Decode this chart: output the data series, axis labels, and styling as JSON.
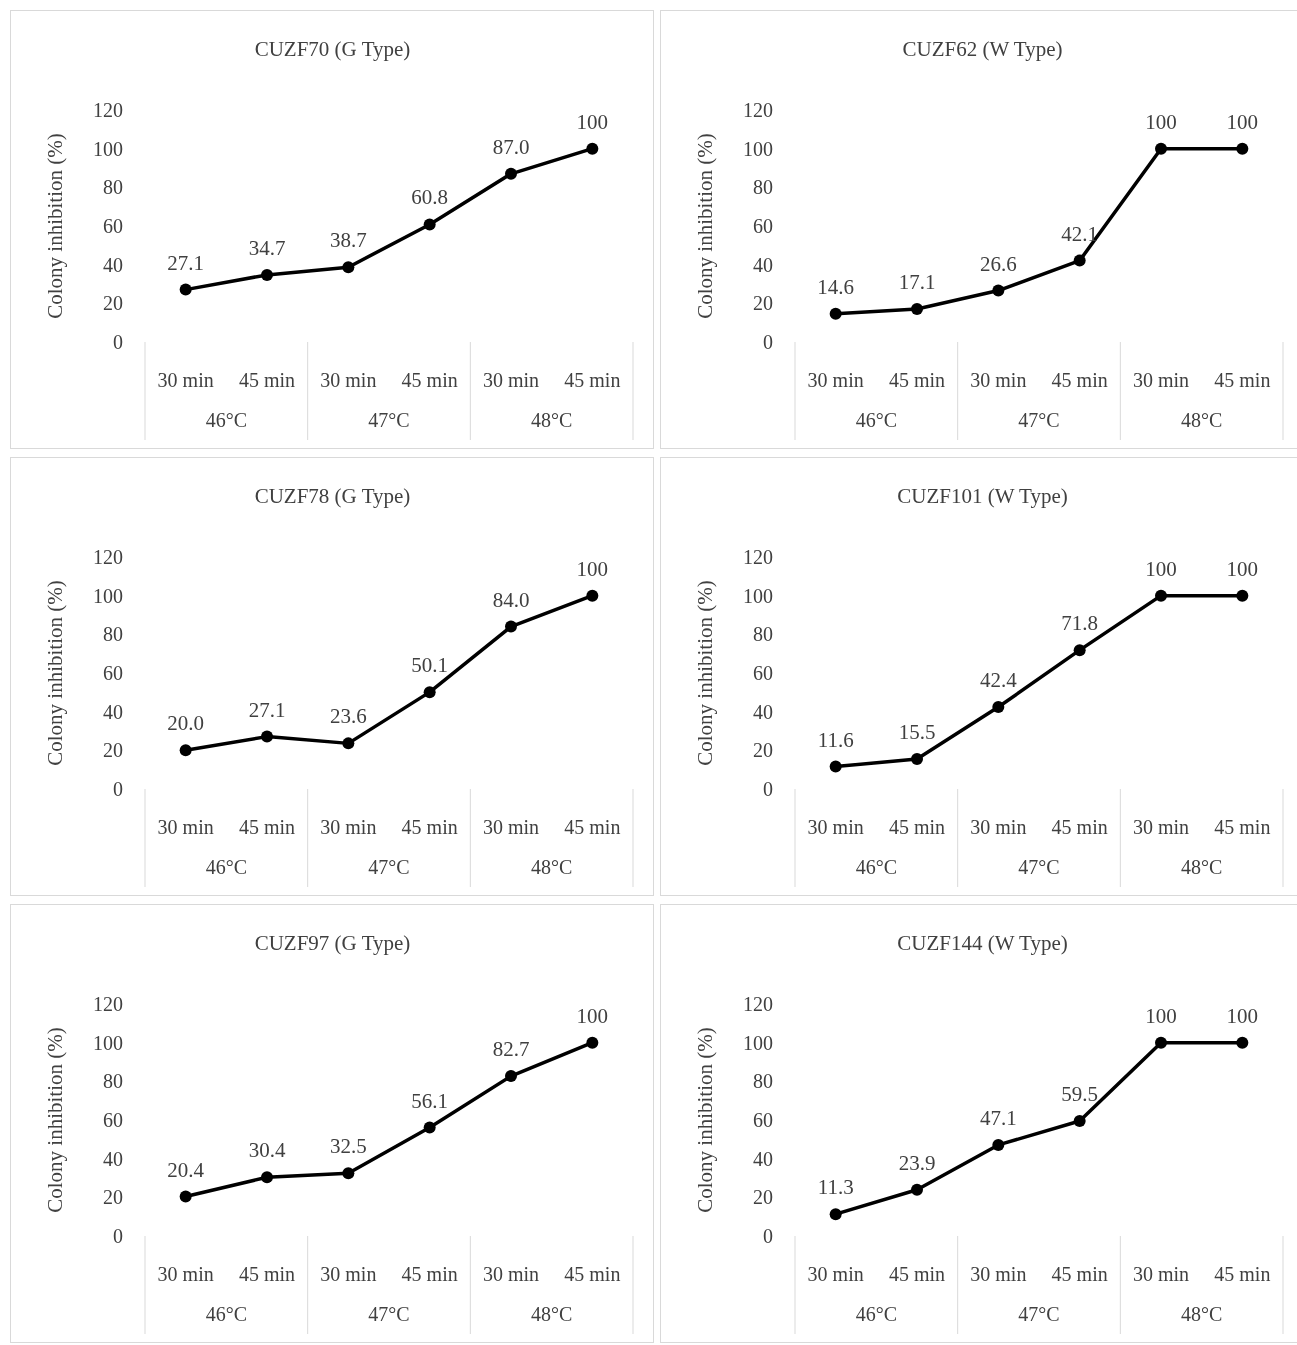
{
  "chart_data": [
    {
      "type": "line",
      "title": "CUZF70 (G Type)",
      "ylabel": "Colony inhibition (%)",
      "categories": [
        "30 min",
        "45 min",
        "30 min",
        "45 min",
        "30 min",
        "45 min"
      ],
      "annotations": [
        "46°C",
        "47°C",
        "48°C"
      ],
      "ylim": [
        0,
        120
      ],
      "yticks": [
        0,
        20,
        40,
        60,
        80,
        100,
        120
      ],
      "marker": "circle",
      "series": [
        {
          "color": "#000000",
          "values": [
            27.1,
            34.7,
            38.7,
            60.8,
            87.0,
            100
          ],
          "value_labels": [
            "27.1",
            "34.7",
            "38.7",
            "60.8",
            "87.0",
            "100"
          ]
        }
      ]
    },
    {
      "type": "line",
      "title": "CUZF62 (W Type)",
      "ylabel": "Colony inhibition (%)",
      "categories": [
        "30 min",
        "45 min",
        "30 min",
        "45 min",
        "30 min",
        "45 min"
      ],
      "annotations": [
        "46°C",
        "47°C",
        "48°C"
      ],
      "ylim": [
        0,
        120
      ],
      "yticks": [
        0,
        20,
        40,
        60,
        80,
        100,
        120
      ],
      "marker": "circle",
      "series": [
        {
          "color": "#000000",
          "values": [
            14.6,
            17.1,
            26.6,
            42.1,
            100,
            100
          ],
          "value_labels": [
            "14.6",
            "17.1",
            "26.6",
            "42.1",
            "100",
            "100"
          ]
        }
      ]
    },
    {
      "type": "line",
      "title": "CUZF78 (G Type)",
      "ylabel": "Colony inhibition (%)",
      "categories": [
        "30 min",
        "45 min",
        "30 min",
        "45 min",
        "30 min",
        "45 min"
      ],
      "annotations": [
        "46°C",
        "47°C",
        "48°C"
      ],
      "ylim": [
        0,
        120
      ],
      "yticks": [
        0,
        20,
        40,
        60,
        80,
        100,
        120
      ],
      "marker": "circle",
      "series": [
        {
          "color": "#000000",
          "values": [
            20.0,
            27.1,
            23.6,
            50.1,
            84.0,
            100
          ],
          "value_labels": [
            "20.0",
            "27.1",
            "23.6",
            "50.1",
            "84.0",
            "100"
          ]
        }
      ]
    },
    {
      "type": "line",
      "title": "CUZF101 (W Type)",
      "ylabel": "Colony inhibition (%)",
      "categories": [
        "30 min",
        "45 min",
        "30 min",
        "45 min",
        "30 min",
        "45 min"
      ],
      "annotations": [
        "46°C",
        "47°C",
        "48°C"
      ],
      "ylim": [
        0,
        120
      ],
      "yticks": [
        0,
        20,
        40,
        60,
        80,
        100,
        120
      ],
      "marker": "circle",
      "series": [
        {
          "color": "#000000",
          "values": [
            11.6,
            15.5,
            42.4,
            71.8,
            100,
            100
          ],
          "value_labels": [
            "11.6",
            "15.5",
            "42.4",
            "71.8",
            "100",
            "100"
          ]
        }
      ]
    },
    {
      "type": "line",
      "title": "CUZF97 (G Type)",
      "ylabel": "Colony inhibition (%)",
      "categories": [
        "30 min",
        "45 min",
        "30 min",
        "45 min",
        "30 min",
        "45 min"
      ],
      "annotations": [
        "46°C",
        "47°C",
        "48°C"
      ],
      "ylim": [
        0,
        120
      ],
      "yticks": [
        0,
        20,
        40,
        60,
        80,
        100,
        120
      ],
      "marker": "circle",
      "series": [
        {
          "color": "#000000",
          "values": [
            20.4,
            30.4,
            32.5,
            56.1,
            82.7,
            100
          ],
          "value_labels": [
            "20.4",
            "30.4",
            "32.5",
            "56.1",
            "82.7",
            "100"
          ]
        }
      ]
    },
    {
      "type": "line",
      "title": "CUZF144 (W Type)",
      "ylabel": "Colony inhibition (%)",
      "categories": [
        "30 min",
        "45 min",
        "30 min",
        "45 min",
        "30 min",
        "45 min"
      ],
      "annotations": [
        "46°C",
        "47°C",
        "48°C"
      ],
      "ylim": [
        0,
        120
      ],
      "yticks": [
        0,
        20,
        40,
        60,
        80,
        100,
        120
      ],
      "marker": "circle",
      "series": [
        {
          "color": "#000000",
          "values": [
            11.3,
            23.9,
            47.1,
            59.5,
            100,
            100
          ],
          "value_labels": [
            "11.3",
            "23.9",
            "47.1",
            "59.5",
            "100",
            "100"
          ]
        }
      ]
    }
  ]
}
